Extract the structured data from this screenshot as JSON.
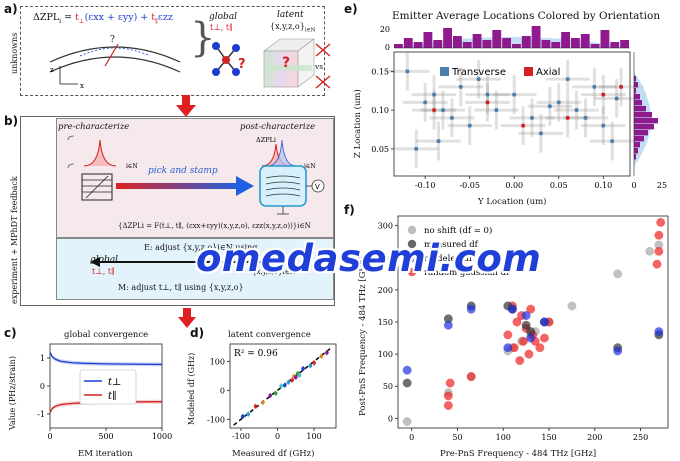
{
  "panels": {
    "a": {
      "label": "a)",
      "side_label": "unknowns",
      "equation_prefix": "ΔZPL",
      "equation_sub": "i",
      "equation_mid": " = ",
      "t_perp": "t",
      "eps_terms": "(εxx + εyy) + ",
      "t_par": "t",
      "eps_zz": "εzz",
      "question": "?",
      "global_title": "global",
      "global_vars": "t⊥, t∥",
      "latent_title": "latent",
      "latent_vars": "{x,y,z,o}",
      "latent_sub": "i∈N",
      "vs": "vs",
      "axis_z": "z",
      "axis_x": "x"
    },
    "b": {
      "label": "b)",
      "side_label": "experiment + MPhDT feedback",
      "pre": "pre-characterize",
      "post": "post-characterize",
      "delta_zpl": "ΔZPLi",
      "ien": "i∈N",
      "pick": "pick and stamp",
      "formula": "{ΔZPLi = F(t⊥, t∥, (εxx+εyy)(x,y,z,o), εzz(x,y,z,o))}i∈N",
      "e_step": "E: adjust {x,y,z,o}i∈N using",
      "global": "global",
      "global_vars": "t⊥, t∥",
      "set_vars": "{x,y,z,o}i∈N",
      "m_step": "M: adjust t⊥, t∥ using {x,y,z,o}",
      "volt": "V"
    },
    "c": {
      "label": "c)",
      "title": "global convergence",
      "ylabel": "Value (PHz/strain)",
      "xlabel": "EM iteration",
      "legend": [
        "t⊥",
        "t∥"
      ]
    },
    "d": {
      "label": "d)",
      "title": "latent convergence",
      "ylabel": "Modeled df (GHz)",
      "xlabel": "Measured df (GHz)",
      "r2": "R² = 0.96"
    },
    "e": {
      "label": "e)",
      "title": "Emitter Average Locations Colored by Orientation",
      "ylabel": "Z Location (um)",
      "xlabel": "Y Location (um)",
      "legend": [
        "Transverse",
        "Axial"
      ]
    },
    "f": {
      "label": "f)",
      "ylabel": "Post-PnS Frequency - 484 THz [GHz]",
      "xlabel": "Pre-PnS Frequency - 484 THz [GHz]",
      "legend": [
        "no shift (df = 0)",
        "measured df",
        "modeled df",
        "random gaussian df"
      ]
    }
  },
  "watermark": "omedasemi.com",
  "colors": {
    "blue": "#1a3fd0",
    "red": "#d22222",
    "arrow": "#e02020",
    "purple": "#8e1a8e",
    "lightblue": "#a8d0f0"
  },
  "chart_data": [
    {
      "type": "line",
      "panel": "c",
      "title": "global convergence",
      "xlabel": "EM iteration",
      "ylabel": "Value (PHz/strain)",
      "xlim": [
        0,
        1000
      ],
      "ylim": [
        -1.5,
        1.5
      ],
      "xticks": [
        "0",
        "500",
        "1000"
      ],
      "yticks": [
        "1",
        "0",
        "-1"
      ],
      "x": [
        0,
        20,
        50,
        100,
        200,
        300,
        500,
        700,
        1000
      ],
      "series": [
        {
          "name": "t⊥",
          "values": [
            1.2,
            1.05,
            0.95,
            0.88,
            0.83,
            0.81,
            0.79,
            0.78,
            0.77
          ]
        },
        {
          "name": "t∥",
          "values": [
            -0.95,
            -0.8,
            -0.72,
            -0.66,
            -0.62,
            -0.6,
            -0.58,
            -0.57,
            -0.56
          ]
        }
      ]
    },
    {
      "type": "scatter",
      "panel": "d",
      "title": "latent convergence",
      "xlabel": "Measured df (GHz)",
      "ylabel": "Modeled df (GHz)",
      "xlim": [
        -130,
        160
      ],
      "ylim": [
        -130,
        160
      ],
      "xticks": [
        "-100",
        "0",
        "100"
      ],
      "yticks": [
        "100",
        "0",
        "-100"
      ],
      "annotation": "R² = 0.96",
      "x": [
        -95,
        -80,
        -60,
        -40,
        -20,
        -5,
        10,
        20,
        30,
        40,
        45,
        50,
        55,
        60,
        70,
        90,
        100,
        120,
        135
      ],
      "y": [
        -90,
        -82,
        -55,
        -42,
        -18,
        -10,
        15,
        18,
        28,
        35,
        48,
        45,
        58,
        52,
        75,
        85,
        95,
        118,
        130
      ]
    },
    {
      "type": "scatter",
      "panel": "e",
      "title": "Emitter Average Locations Colored by Orientation",
      "xlabel": "Y Location (um)",
      "ylabel": "Z Location (um)",
      "xlim": [
        -0.135,
        0.13
      ],
      "ylim": [
        0.015,
        0.175
      ],
      "xticks": [
        "-0.10",
        "-0.05",
        "0.00",
        "0.05",
        "0.10"
      ],
      "yticks": [
        "0.15",
        "0.10",
        "0.05"
      ],
      "top_hist_yticks": [
        "20",
        "0"
      ],
      "right_hist_xticks": [
        "0",
        "25"
      ],
      "series": [
        {
          "name": "Transverse",
          "x": [
            -0.12,
            -0.1,
            -0.09,
            -0.08,
            -0.07,
            -0.06,
            -0.05,
            -0.04,
            -0.02,
            0.0,
            0.02,
            0.03,
            0.05,
            0.07,
            0.09,
            0.1,
            0.11,
            -0.11,
            -0.03,
            0.06,
            0.08,
            -0.085,
            0.04,
            0.115
          ],
          "y": [
            0.15,
            0.11,
            0.12,
            0.1,
            0.09,
            0.13,
            0.08,
            0.14,
            0.1,
            0.12,
            0.09,
            0.07,
            0.11,
            0.1,
            0.13,
            0.08,
            0.06,
            0.05,
            0.12,
            0.14,
            0.09,
            0.06,
            0.105,
            0.115
          ]
        },
        {
          "name": "Axial",
          "x": [
            -0.09,
            -0.03,
            0.01,
            0.06,
            0.1,
            0.12
          ],
          "y": [
            0.1,
            0.11,
            0.08,
            0.09,
            0.12,
            0.13
          ]
        }
      ]
    },
    {
      "type": "scatter",
      "panel": "f",
      "xlabel": "Pre-PnS Frequency - 484 THz [GHz]",
      "ylabel": "Post-PnS Frequency - 484 THz [GHz]",
      "xlim": [
        -15,
        280
      ],
      "ylim": [
        -15,
        315
      ],
      "xticks": [
        "0",
        "50",
        "100",
        "150",
        "200",
        "250"
      ],
      "yticks": [
        "0",
        "50",
        "100",
        "150",
        "200",
        "250",
        "300"
      ],
      "series": [
        {
          "name": "no shift (df = 0)",
          "x": [
            -5,
            40,
            65,
            105,
            110,
            120,
            130,
            135,
            150,
            175,
            225,
            260,
            270
          ],
          "y": [
            -5,
            40,
            65,
            105,
            110,
            120,
            130,
            135,
            150,
            175,
            225,
            260,
            270
          ]
        },
        {
          "name": "measured df",
          "x": [
            -5,
            40,
            65,
            105,
            110,
            125,
            130,
            145,
            225,
            270
          ],
          "y": [
            55,
            155,
            175,
            175,
            170,
            145,
            135,
            150,
            110,
            130
          ]
        },
        {
          "name": "modeled df",
          "x": [
            -5,
            40,
            65,
            105,
            110,
            125,
            130,
            145,
            225,
            270
          ],
          "y": [
            75,
            145,
            170,
            110,
            170,
            160,
            125,
            150,
            105,
            135
          ]
        },
        {
          "name": "random gaussian df",
          "x": [
            40,
            40,
            42,
            65,
            105,
            110,
            112,
            115,
            118,
            120,
            122,
            125,
            128,
            130,
            132,
            135,
            140,
            145,
            150,
            268,
            270,
            270,
            272
          ],
          "y": [
            20,
            35,
            55,
            65,
            130,
            175,
            110,
            150,
            90,
            160,
            120,
            140,
            100,
            170,
            130,
            120,
            110,
            125,
            150,
            240,
            260,
            285,
            305
          ]
        }
      ]
    }
  ]
}
